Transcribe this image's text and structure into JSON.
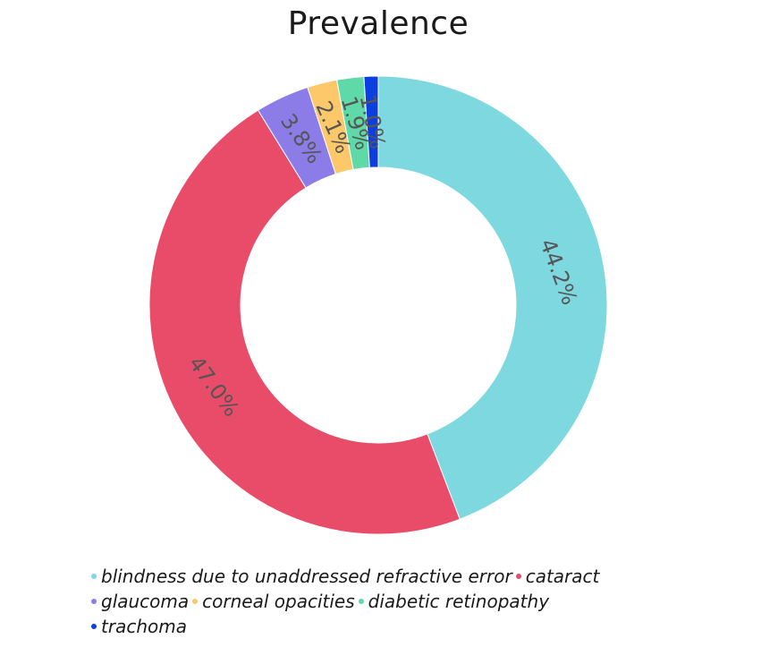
{
  "chart_data": {
    "type": "pie",
    "title": "Prevalence",
    "hole": true,
    "legend_position": "bottom",
    "slices": [
      {
        "label": "blindness due to unaddressed refractive error",
        "value": 44.2,
        "text": "44.2%",
        "color": "#7dd8e0"
      },
      {
        "label": "cataract",
        "value": 47.0,
        "text": "47.0%",
        "color": "#e84c69"
      },
      {
        "label": "glaucoma",
        "value": 3.8,
        "text": "3.8%",
        "color": "#8b7ce8"
      },
      {
        "label": "corneal opacities",
        "value": 2.1,
        "text": "2.1%",
        "color": "#fdc86a"
      },
      {
        "label": "diabetic retinopathy",
        "value": 1.9,
        "text": "1.9%",
        "color": "#5fd9a7"
      },
      {
        "label": "trachoma",
        "value": 1.0,
        "text": "1.0%",
        "color": "#0b3fe0"
      }
    ]
  }
}
